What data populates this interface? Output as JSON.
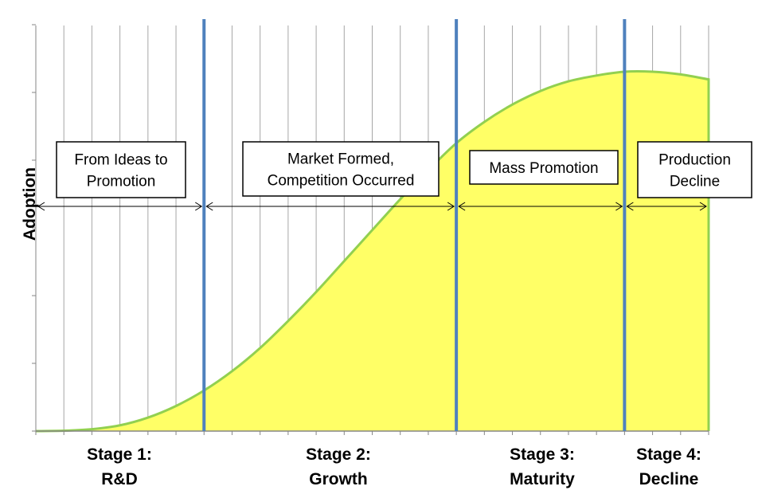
{
  "chart_data": {
    "type": "area",
    "title": "",
    "xlabel": "",
    "ylabel": "Adoption",
    "x": [
      0,
      1,
      2,
      3,
      4,
      5,
      6,
      7,
      8,
      9,
      10,
      11,
      12,
      13,
      14,
      15,
      16,
      17,
      18,
      19,
      20,
      21,
      22,
      23,
      24
    ],
    "values": [
      0,
      0.1,
      0.5,
      1.5,
      3.5,
      6.5,
      10.5,
      15.5,
      21.5,
      28.5,
      36,
      44,
      52,
      60,
      67.5,
      74.5,
      80,
      84.5,
      88,
      90.5,
      92,
      93,
      93,
      92.3,
      91
    ],
    "ylim": [
      0,
      100
    ],
    "grid": "vertical",
    "fill_color": "#FFFF66",
    "line_color": "#92D050",
    "stage_divider_color": "#4F81BD",
    "stage_boundaries": [
      6,
      15,
      21
    ],
    "stages": [
      {
        "line1": "Stage 1:",
        "line2": "R&D"
      },
      {
        "line1": "Stage 2:",
        "line2": "Growth"
      },
      {
        "line1": "Stage 3:",
        "line2": "Maturity"
      },
      {
        "line1": "Stage 4:",
        "line2": "Decline"
      }
    ],
    "annotations": [
      {
        "lines": [
          "From Ideas to",
          "Promotion"
        ]
      },
      {
        "lines": [
          "Market Formed,",
          "Competition Occurred"
        ]
      },
      {
        "lines": [
          "Mass Promotion"
        ]
      },
      {
        "lines": [
          "Production",
          "Decline"
        ]
      }
    ]
  }
}
